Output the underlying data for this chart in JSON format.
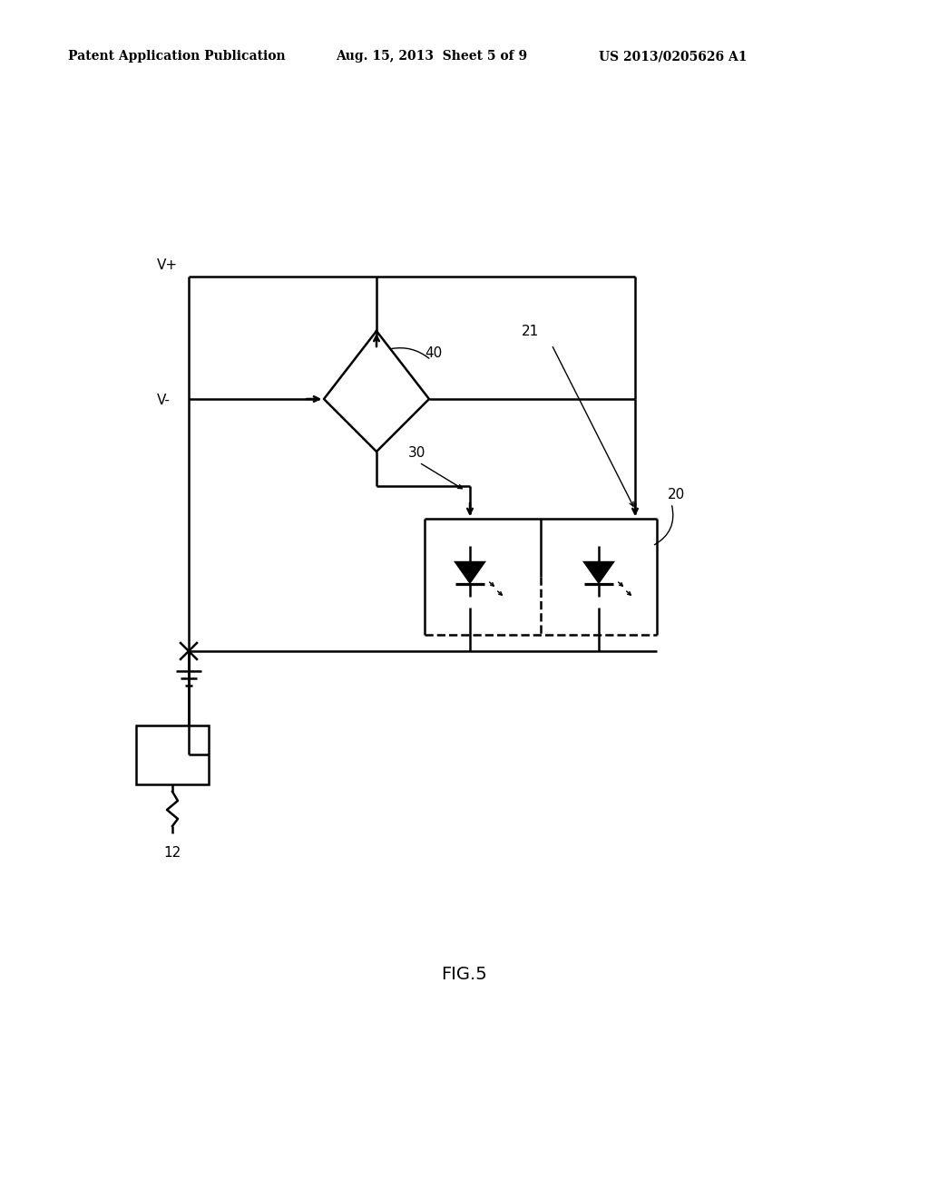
{
  "bg_color": "#ffffff",
  "line_color": "#000000",
  "line_width": 1.8,
  "header_left": "Patent Application Publication",
  "header_center": "Aug. 15, 2013  Sheet 5 of 9",
  "header_right": "US 2013/0205626 A1",
  "figure_label": "FIG.5",
  "label_vplus": "V+",
  "label_vminus": "V-",
  "label_40": "40",
  "label_21": "21",
  "label_30": "30",
  "label_20": "20",
  "label_12": "12"
}
